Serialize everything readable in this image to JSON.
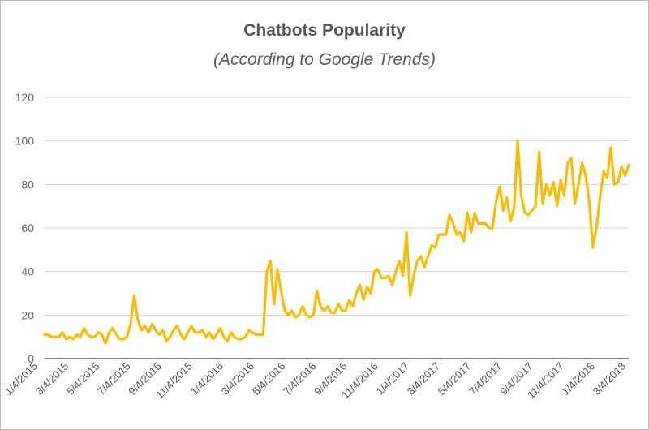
{
  "chart_data": {
    "type": "line",
    "title": "Chatbots Popularity",
    "subtitle": "(According to Google Trends)",
    "xlabel": "",
    "ylabel": "",
    "ylim": [
      0,
      120
    ],
    "yticks": [
      "0",
      "20",
      "40",
      "60",
      "80",
      "100",
      "120"
    ],
    "grid": true,
    "legend": "none",
    "color": "#FBBC04",
    "xtick_labels": [
      "1/4/2015",
      "3/4/2015",
      "5/4/2015",
      "7/4/2015",
      "9/4/2015",
      "11/4/2015",
      "1/4/2016",
      "3/4/2016",
      "5/4/2016",
      "7/4/2016",
      "9/4/2016",
      "11/4/2016",
      "1/4/2017",
      "3/4/2017",
      "5/4/2017",
      "7/4/2017",
      "9/4/2017",
      "11/4/2017",
      "1/4/2018",
      "3/4/2018"
    ],
    "series": [
      {
        "values": [
          11,
          11,
          10,
          10,
          10,
          12,
          9,
          10,
          9,
          11,
          10,
          14,
          11,
          10,
          10,
          12,
          11,
          7,
          12,
          14,
          11,
          9,
          9,
          10,
          16,
          29,
          18,
          13,
          15,
          12,
          16,
          13,
          11,
          13,
          8,
          10,
          13,
          15,
          11,
          9,
          12,
          15,
          12,
          12,
          13,
          10,
          12,
          9,
          11,
          14,
          10,
          8,
          12,
          10,
          9,
          9,
          10,
          13,
          12,
          11,
          11,
          11,
          40,
          45,
          25,
          41,
          31,
          22,
          20,
          22,
          19,
          20,
          24,
          20,
          19,
          20,
          31,
          24,
          22,
          24,
          21,
          21,
          25,
          22,
          22,
          27,
          24,
          30,
          34,
          27,
          33,
          30,
          40,
          41,
          37,
          37,
          38,
          34,
          40,
          45,
          38,
          58,
          29,
          38,
          45,
          47,
          42,
          47,
          52,
          51,
          57,
          57,
          57,
          66,
          62,
          57,
          58,
          54,
          67,
          58,
          67,
          62,
          62,
          62,
          60,
          60,
          72,
          79,
          68,
          74,
          63,
          69,
          100,
          75,
          67,
          66,
          68,
          70,
          95,
          71,
          80,
          75,
          81,
          70,
          82,
          75,
          90,
          92,
          71,
          80,
          90,
          84,
          72,
          51,
          60,
          74,
          86,
          83,
          97,
          80,
          81,
          88,
          84,
          89
        ]
      }
    ]
  }
}
